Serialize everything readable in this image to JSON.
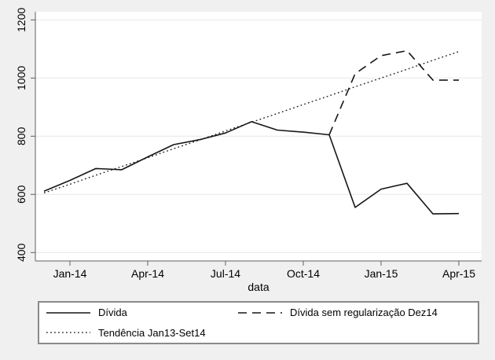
{
  "figure": {
    "background": "#f0f0f1",
    "plot_background": "#ffffff",
    "grid_color": "#e7e7e7",
    "axis_color": "#5f5f5f",
    "line_color": "#161616",
    "legend_border": "#8a8a8a",
    "text_color": "#000000"
  },
  "chart_data": {
    "type": "line",
    "x": [
      "Dec-13",
      "Jan-14",
      "Feb-14",
      "Mar-14",
      "Apr-14",
      "May-14",
      "Jun-14",
      "Jul-14",
      "Aug-14",
      "Sep-14",
      "Oct-14",
      "Nov-14",
      "Dec-14",
      "Jan-15",
      "Feb-15",
      "Mar-15",
      "Apr-15"
    ],
    "x_axis_label": "data",
    "x_tick_indices": [
      1,
      4,
      7,
      10,
      13,
      16
    ],
    "x_tick_labels": [
      "Jan-14",
      "Apr-14",
      "Jul-14",
      "Oct-14",
      "Jan-15",
      "Apr-15"
    ],
    "y_ticks": [
      400,
      600,
      800,
      1000,
      1200
    ],
    "ylim": [
      400,
      1200
    ],
    "grid": true,
    "legend_position": "bottom",
    "series": [
      {
        "name": "Dívida",
        "style": "solid",
        "values": [
          611,
          648,
          689,
          685,
          729,
          771,
          788,
          811,
          850,
          821,
          814,
          805,
          555,
          618,
          638,
          533,
          534
        ]
      },
      {
        "name": "Dívida sem regularização Dez14",
        "style": "dashed",
        "values": [
          null,
          null,
          null,
          null,
          null,
          null,
          null,
          null,
          null,
          null,
          null,
          805,
          1015,
          1077,
          1094,
          993,
          993
        ]
      },
      {
        "name": "Tendência Jan13-Set14",
        "style": "dotted",
        "values": [
          605,
          635,
          666,
          696,
          726,
          757,
          787,
          818,
          848,
          878,
          909,
          939,
          970,
          1000,
          1030,
          1061,
          1091
        ]
      }
    ]
  },
  "legend": {
    "items": [
      {
        "label": "Dívida",
        "style": "solid"
      },
      {
        "label": "Dívida sem regularização Dez14",
        "style": "dashed"
      },
      {
        "label": "Tendência Jan13-Set14",
        "style": "dotted"
      }
    ]
  }
}
